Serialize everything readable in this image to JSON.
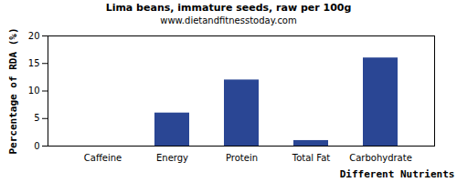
{
  "chart_data": {
    "type": "bar",
    "title": "Lima beans, immature seeds, raw per 100g",
    "subtitle": "www.dietandfitnesstoday.com",
    "x_label": "Different Nutrients",
    "y_label": "Percentage of RDA (%)",
    "categories": [
      "Caffeine",
      "Energy",
      "Protein",
      "Total Fat",
      "Carbohydrate"
    ],
    "values": [
      0,
      6,
      12,
      1,
      16
    ],
    "color": "#2a4694",
    "ylim": [
      0,
      20
    ],
    "yticks": [
      0,
      5,
      10,
      15,
      20
    ],
    "grid": false
  }
}
